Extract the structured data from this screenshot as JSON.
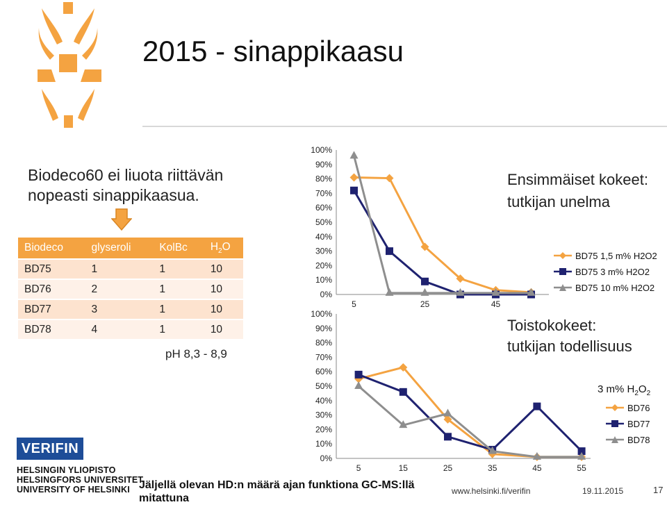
{
  "slide": {
    "title": "2015 - sinappikaasu",
    "intro": "Biodeco60 ei liuota riittävän nopeasti sinappikaasua.",
    "ph_note": "pH 8,3 - 8,9",
    "footer_note": "Jäljellä olevan HD:n määrä ajan funktiona GC-MS:llä mitattuna",
    "url": "www.helsinki.fi/verifin",
    "date": "19.11.2015",
    "page": "17",
    "note1_line1": "Ensimmäiset kokeet:",
    "note1_line2": "tutkijan unelma",
    "note2_line1": "Toistokokeet:",
    "note2_line2": "tutkijan todellisuus",
    "legend2_title": "3 m% H2O2",
    "accent_color": "#f4a341",
    "icons": [
      "flame-logo-icon",
      "arrow-down-icon"
    ]
  },
  "branding": {
    "verifin": "VERIFIN",
    "university_lines": [
      "HELSINGIN YLIOPISTO",
      "HELSINGFORS UNIVERSITET",
      "UNIVERSITY OF HELSINKI"
    ]
  },
  "table": {
    "headers": [
      "Biodeco",
      "glyseroli",
      "KolBc",
      "H2O"
    ],
    "rows": [
      [
        "BD75",
        "1",
        "1",
        "10"
      ],
      [
        "BD76",
        "2",
        "1",
        "10"
      ],
      [
        "BD77",
        "3",
        "1",
        "10"
      ],
      [
        "BD78",
        "4",
        "1",
        "10"
      ]
    ],
    "header_color": "#f4a341",
    "row_colors": [
      "#fde3cf",
      "#fef1e8"
    ]
  },
  "chart_data": [
    {
      "type": "line",
      "x": [
        5,
        15,
        25,
        35,
        45,
        55
      ],
      "xticks": [
        5,
        25,
        45
      ],
      "ylim": [
        0,
        100
      ],
      "yticks": [
        "0%",
        "10%",
        "20%",
        "30%",
        "40%",
        "50%",
        "60%",
        "70%",
        "80%",
        "90%",
        "100%"
      ],
      "series": [
        {
          "name": "BD75 1,5 m% H2O2",
          "color": "#f4a341",
          "marker": "diamond",
          "values": [
            81,
            80.5,
            33,
            11,
            3,
            1.5
          ]
        },
        {
          "name": "BD75 3 m% H2O2",
          "color": "#1f2270",
          "marker": "square",
          "values": [
            72,
            30,
            9,
            0,
            0,
            0
          ]
        },
        {
          "name": "BD75 10 m% H2O2",
          "color": "#8e8e8e",
          "marker": "triangle",
          "values": [
            96,
            1,
            1,
            1,
            1,
            1
          ]
        }
      ],
      "grid": false,
      "legend_position": "right"
    },
    {
      "type": "line",
      "x": [
        5,
        15,
        25,
        35,
        45,
        55
      ],
      "xticks": [
        5,
        15,
        25,
        35,
        45,
        55
      ],
      "ylim": [
        0,
        100
      ],
      "yticks": [
        "0%",
        "10%",
        "20%",
        "30%",
        "40%",
        "50%",
        "60%",
        "70%",
        "80%",
        "90%",
        "100%"
      ],
      "series": [
        {
          "name": "BD76",
          "color": "#f4a341",
          "marker": "diamond",
          "values": [
            55,
            63,
            27,
            3,
            1,
            1
          ]
        },
        {
          "name": "BD77",
          "color": "#1f2270",
          "marker": "square",
          "values": [
            58,
            46,
            15,
            6,
            36,
            5
          ]
        },
        {
          "name": "BD78",
          "color": "#8e8e8e",
          "marker": "triangle",
          "values": [
            50,
            23,
            31,
            5,
            1,
            1
          ]
        }
      ],
      "grid": false,
      "legend_position": "right"
    }
  ]
}
